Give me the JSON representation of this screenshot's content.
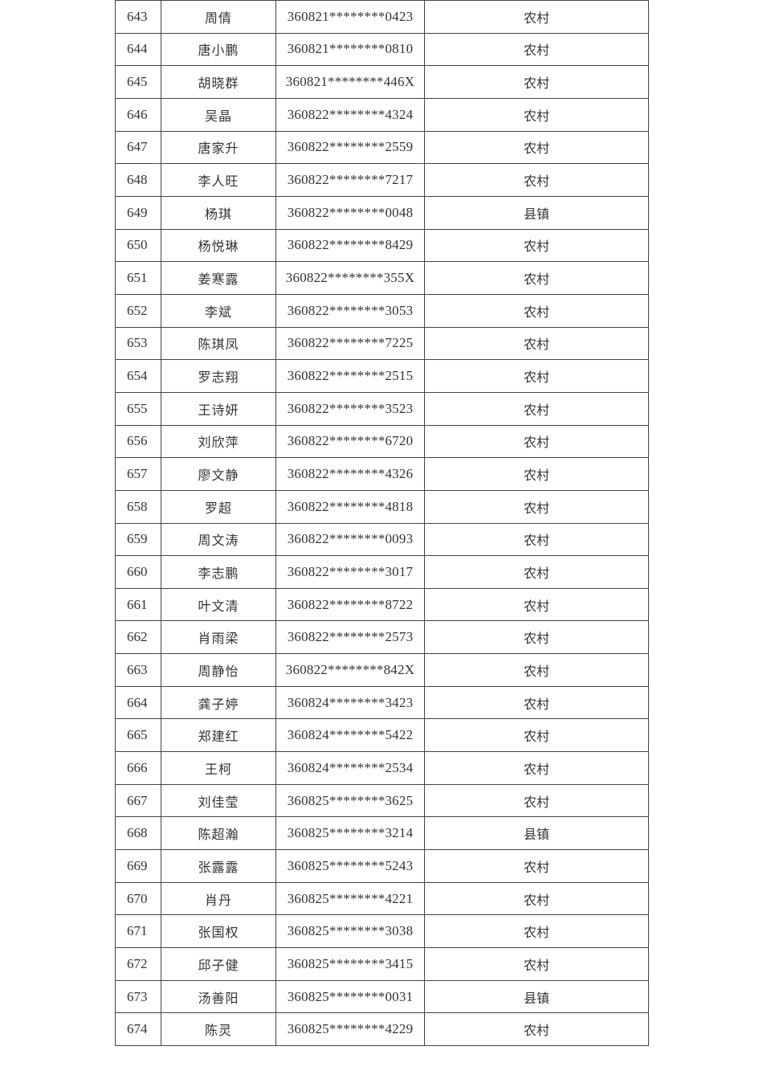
{
  "table": {
    "rows": [
      {
        "no": "643",
        "name": "周倩",
        "id": "360821********0423",
        "type": "农村"
      },
      {
        "no": "644",
        "name": "唐小鹏",
        "id": "360821********0810",
        "type": "农村"
      },
      {
        "no": "645",
        "name": "胡晓群",
        "id": "360821********446X",
        "type": "农村"
      },
      {
        "no": "646",
        "name": "吴晶",
        "id": "360822********4324",
        "type": "农村"
      },
      {
        "no": "647",
        "name": "唐家升",
        "id": "360822********2559",
        "type": "农村"
      },
      {
        "no": "648",
        "name": "李人旺",
        "id": "360822********7217",
        "type": "农村"
      },
      {
        "no": "649",
        "name": "杨琪",
        "id": "360822********0048",
        "type": "县镇"
      },
      {
        "no": "650",
        "name": "杨悦琳",
        "id": "360822********8429",
        "type": "农村"
      },
      {
        "no": "651",
        "name": "姜寒露",
        "id": "360822********355X",
        "type": "农村"
      },
      {
        "no": "652",
        "name": "李斌",
        "id": "360822********3053",
        "type": "农村"
      },
      {
        "no": "653",
        "name": "陈琪凤",
        "id": "360822********7225",
        "type": "农村"
      },
      {
        "no": "654",
        "name": "罗志翔",
        "id": "360822********2515",
        "type": "农村"
      },
      {
        "no": "655",
        "name": "王诗妍",
        "id": "360822********3523",
        "type": "农村"
      },
      {
        "no": "656",
        "name": "刘欣萍",
        "id": "360822********6720",
        "type": "农村"
      },
      {
        "no": "657",
        "name": "廖文静",
        "id": "360822********4326",
        "type": "农村"
      },
      {
        "no": "658",
        "name": "罗超",
        "id": "360822********4818",
        "type": "农村"
      },
      {
        "no": "659",
        "name": "周文涛",
        "id": "360822********0093",
        "type": "农村"
      },
      {
        "no": "660",
        "name": "李志鹏",
        "id": "360822********3017",
        "type": "农村"
      },
      {
        "no": "661",
        "name": "叶文清",
        "id": "360822********8722",
        "type": "农村"
      },
      {
        "no": "662",
        "name": "肖雨梁",
        "id": "360822********2573",
        "type": "农村"
      },
      {
        "no": "663",
        "name": "周静怡",
        "id": "360822********842X",
        "type": "农村"
      },
      {
        "no": "664",
        "name": "龚子婷",
        "id": "360824********3423",
        "type": "农村"
      },
      {
        "no": "665",
        "name": "郑建红",
        "id": "360824********5422",
        "type": "农村"
      },
      {
        "no": "666",
        "name": "王柯",
        "id": "360824********2534",
        "type": "农村"
      },
      {
        "no": "667",
        "name": "刘佳莹",
        "id": "360825********3625",
        "type": "农村"
      },
      {
        "no": "668",
        "name": "陈超瀚",
        "id": "360825********3214",
        "type": "县镇"
      },
      {
        "no": "669",
        "name": "张露露",
        "id": "360825********5243",
        "type": "农村"
      },
      {
        "no": "670",
        "name": "肖丹",
        "id": "360825********4221",
        "type": "农村"
      },
      {
        "no": "671",
        "name": "张国权",
        "id": "360825********3038",
        "type": "农村"
      },
      {
        "no": "672",
        "name": "邱子健",
        "id": "360825********3415",
        "type": "农村"
      },
      {
        "no": "673",
        "name": "汤善阳",
        "id": "360825********0031",
        "type": "县镇"
      },
      {
        "no": "674",
        "name": "陈灵",
        "id": "360825********4229",
        "type": "农村"
      }
    ]
  }
}
